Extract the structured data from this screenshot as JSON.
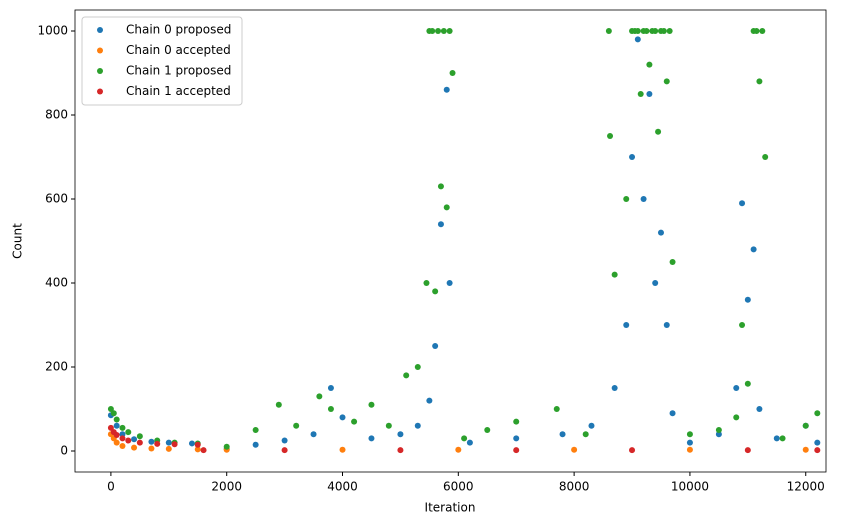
{
  "chart_data": {
    "type": "scatter",
    "x_label": "Iteration",
    "y_label": "Count",
    "xlim": [
      -620,
      12350
    ],
    "ylim": [
      -50,
      1050
    ],
    "xticks": [
      0,
      2000,
      4000,
      6000,
      8000,
      10000,
      12000
    ],
    "yticks": [
      0,
      200,
      400,
      600,
      800,
      1000
    ],
    "legend": "upper left",
    "series": [
      {
        "name": "Chain 0 proposed",
        "color": "#1f77b4",
        "x": [
          0,
          100,
          200,
          400,
          700,
          1000,
          1400,
          2000,
          2500,
          3000,
          3500,
          3800,
          4000,
          4500,
          5000,
          5300,
          5500,
          5600,
          5700,
          5800,
          5850,
          6200,
          7000,
          7800,
          8300,
          8700,
          8900,
          9000,
          9100,
          9200,
          9300,
          9400,
          9500,
          9600,
          9700,
          10000,
          10500,
          10800,
          10900,
          11000,
          11100,
          11200,
          11500,
          12000,
          12200
        ],
        "values": [
          85,
          60,
          40,
          28,
          22,
          20,
          18,
          5,
          15,
          25,
          40,
          150,
          80,
          30,
          40,
          60,
          120,
          250,
          540,
          860,
          400,
          20,
          30,
          40,
          60,
          150,
          300,
          700,
          980,
          600,
          850,
          400,
          520,
          300,
          90,
          20,
          40,
          150,
          590,
          360,
          480,
          100,
          30,
          60,
          20
        ]
      },
      {
        "name": "Chain 0 accepted",
        "color": "#ff7f0e",
        "x": [
          0,
          50,
          100,
          200,
          400,
          700,
          1000,
          1500,
          2000,
          4000,
          6000,
          8000,
          10000,
          12000
        ],
        "values": [
          40,
          30,
          20,
          12,
          8,
          6,
          5,
          4,
          3,
          3,
          3,
          3,
          3,
          3
        ]
      },
      {
        "name": "Chain 1 proposed",
        "color": "#2ca02c",
        "x": [
          0,
          50,
          100,
          200,
          300,
          500,
          800,
          1100,
          1500,
          2000,
          2500,
          2900,
          3200,
          3600,
          3800,
          4200,
          4500,
          4800,
          5100,
          5300,
          5450,
          5500,
          5550,
          5600,
          5650,
          5700,
          5750,
          5800,
          5850,
          5900,
          6100,
          6500,
          7000,
          7700,
          8200,
          8600,
          8620,
          8700,
          8900,
          9000,
          9050,
          9100,
          9150,
          9200,
          9250,
          9300,
          9350,
          9400,
          9450,
          9500,
          9550,
          9600,
          9650,
          9700,
          10000,
          10500,
          10800,
          10900,
          11000,
          11100,
          11150,
          11200,
          11250,
          11300,
          11600,
          12000,
          12200
        ],
        "values": [
          100,
          90,
          75,
          55,
          45,
          35,
          25,
          20,
          18,
          10,
          50,
          110,
          60,
          130,
          100,
          70,
          110,
          60,
          180,
          200,
          400,
          1000,
          1000,
          380,
          1000,
          630,
          1000,
          580,
          1000,
          900,
          30,
          50,
          70,
          100,
          40,
          1000,
          750,
          420,
          600,
          1000,
          1000,
          1000,
          850,
          1000,
          1000,
          920,
          1000,
          1000,
          760,
          1000,
          1000,
          880,
          1000,
          450,
          40,
          50,
          80,
          300,
          160,
          1000,
          1000,
          880,
          1000,
          700,
          30,
          60,
          90
        ]
      },
      {
        "name": "Chain 1 accepted",
        "color": "#d62728",
        "x": [
          0,
          50,
          100,
          200,
          300,
          500,
          800,
          1100,
          1500,
          1600,
          3000,
          5000,
          7000,
          9000,
          11000,
          12200
        ],
        "values": [
          55,
          45,
          38,
          30,
          25,
          20,
          17,
          16,
          15,
          2,
          2,
          2,
          2,
          2,
          2,
          2
        ]
      }
    ]
  }
}
